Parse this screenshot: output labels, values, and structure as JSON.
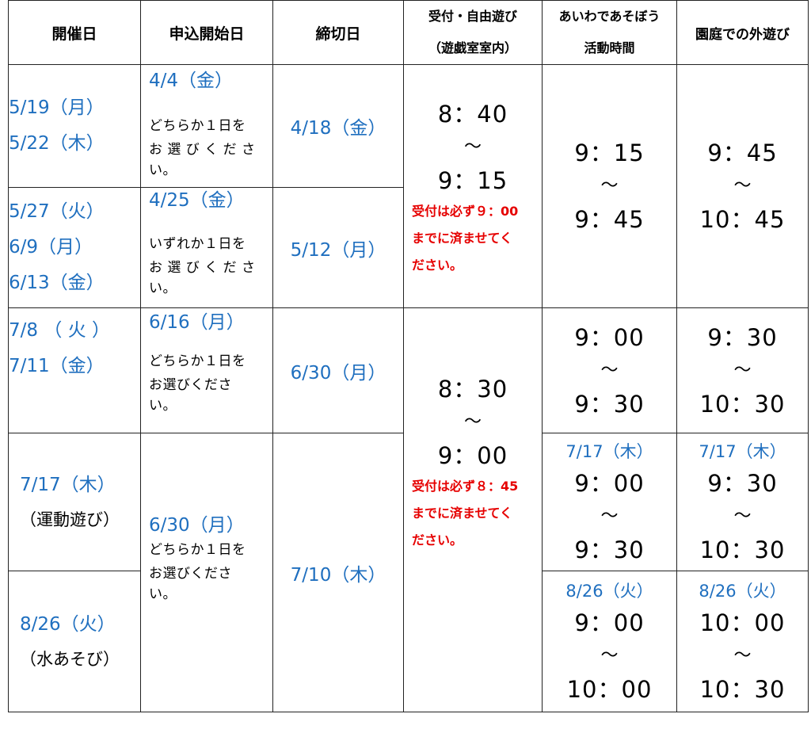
{
  "headers": {
    "date": "開催日",
    "apply_start": "申込開始日",
    "deadline": "締切日",
    "reception_line1": "受付・自由遊び",
    "reception_line2": "（遊戯室室内）",
    "activity_line1": "あいわであそぼう",
    "activity_line2": "活動時間",
    "outdoor": "園庭での外遊び"
  },
  "rows": [
    {
      "dates": [
        "5/19（月）",
        "5/22（木）"
      ],
      "apply_date": "4/4（金）",
      "apply_text": [
        "どちらか１日を",
        "お 選 び く だ さ",
        "い。"
      ],
      "deadline": "4/18（金）"
    },
    {
      "dates": [
        "5/27（火）",
        "6/9（月）",
        "6/13（金）"
      ],
      "apply_date": "4/25（金）",
      "apply_text": [
        "いずれか１日を",
        "お 選 び く だ さ",
        "い。"
      ],
      "deadline": "5/12（月）"
    },
    {
      "dates": [
        "7/8 （ 火 ）",
        "7/11（金）"
      ],
      "apply_date": "6/16（月）",
      "apply_text": [
        "どちらか１日を",
        "お選びくださ",
        "い。"
      ],
      "deadline": "6/30（月）"
    },
    {
      "dates": [
        "7/17（木）"
      ],
      "dates_note": "（運動遊び）",
      "apply_date": "6/30（月）",
      "apply_text": [
        "どちらか１日を",
        "お選びくださ",
        "い。"
      ],
      "deadline": "7/10（木）"
    },
    {
      "dates": [
        "8/26（火）"
      ],
      "dates_note": "（水あそび）"
    }
  ],
  "reception_blocks": [
    {
      "start": "8：40",
      "wave": "～",
      "end": "9：15",
      "note": [
        "受付は必ず９：00",
        "までに済ませてく",
        "ださい。"
      ]
    },
    {
      "start": "8：30",
      "wave": "～",
      "end": "9：00",
      "note": [
        "受付は必ず８：45",
        "までに済ませてく",
        "ださい。"
      ]
    }
  ],
  "activity": {
    "block1": {
      "start": "9：15",
      "wave": "～",
      "end": "9：45"
    },
    "block2": {
      "start": "9：00",
      "wave": "～",
      "end": "9：30"
    },
    "block3": {
      "date": "7/17（木）",
      "start": "9：00",
      "wave": "～",
      "end": "9：30"
    },
    "block4": {
      "date": "8/26（火）",
      "start": "9：00",
      "wave": "～",
      "end": "10：00"
    }
  },
  "outdoor": {
    "block1": {
      "start": "9：45",
      "wave": "～",
      "end": "10：45"
    },
    "block2": {
      "start": "9：30",
      "wave": "～",
      "end": "10：30"
    },
    "block3": {
      "date": "7/17（木）",
      "start": "9：30",
      "wave": "～",
      "end": "10：30"
    },
    "block4": {
      "date": "8/26（火）",
      "start": "10：00",
      "wave": "～",
      "end": "10：30"
    }
  },
  "colors": {
    "blue": "#1f6fbf",
    "red": "#e60000",
    "border": "#222222"
  }
}
